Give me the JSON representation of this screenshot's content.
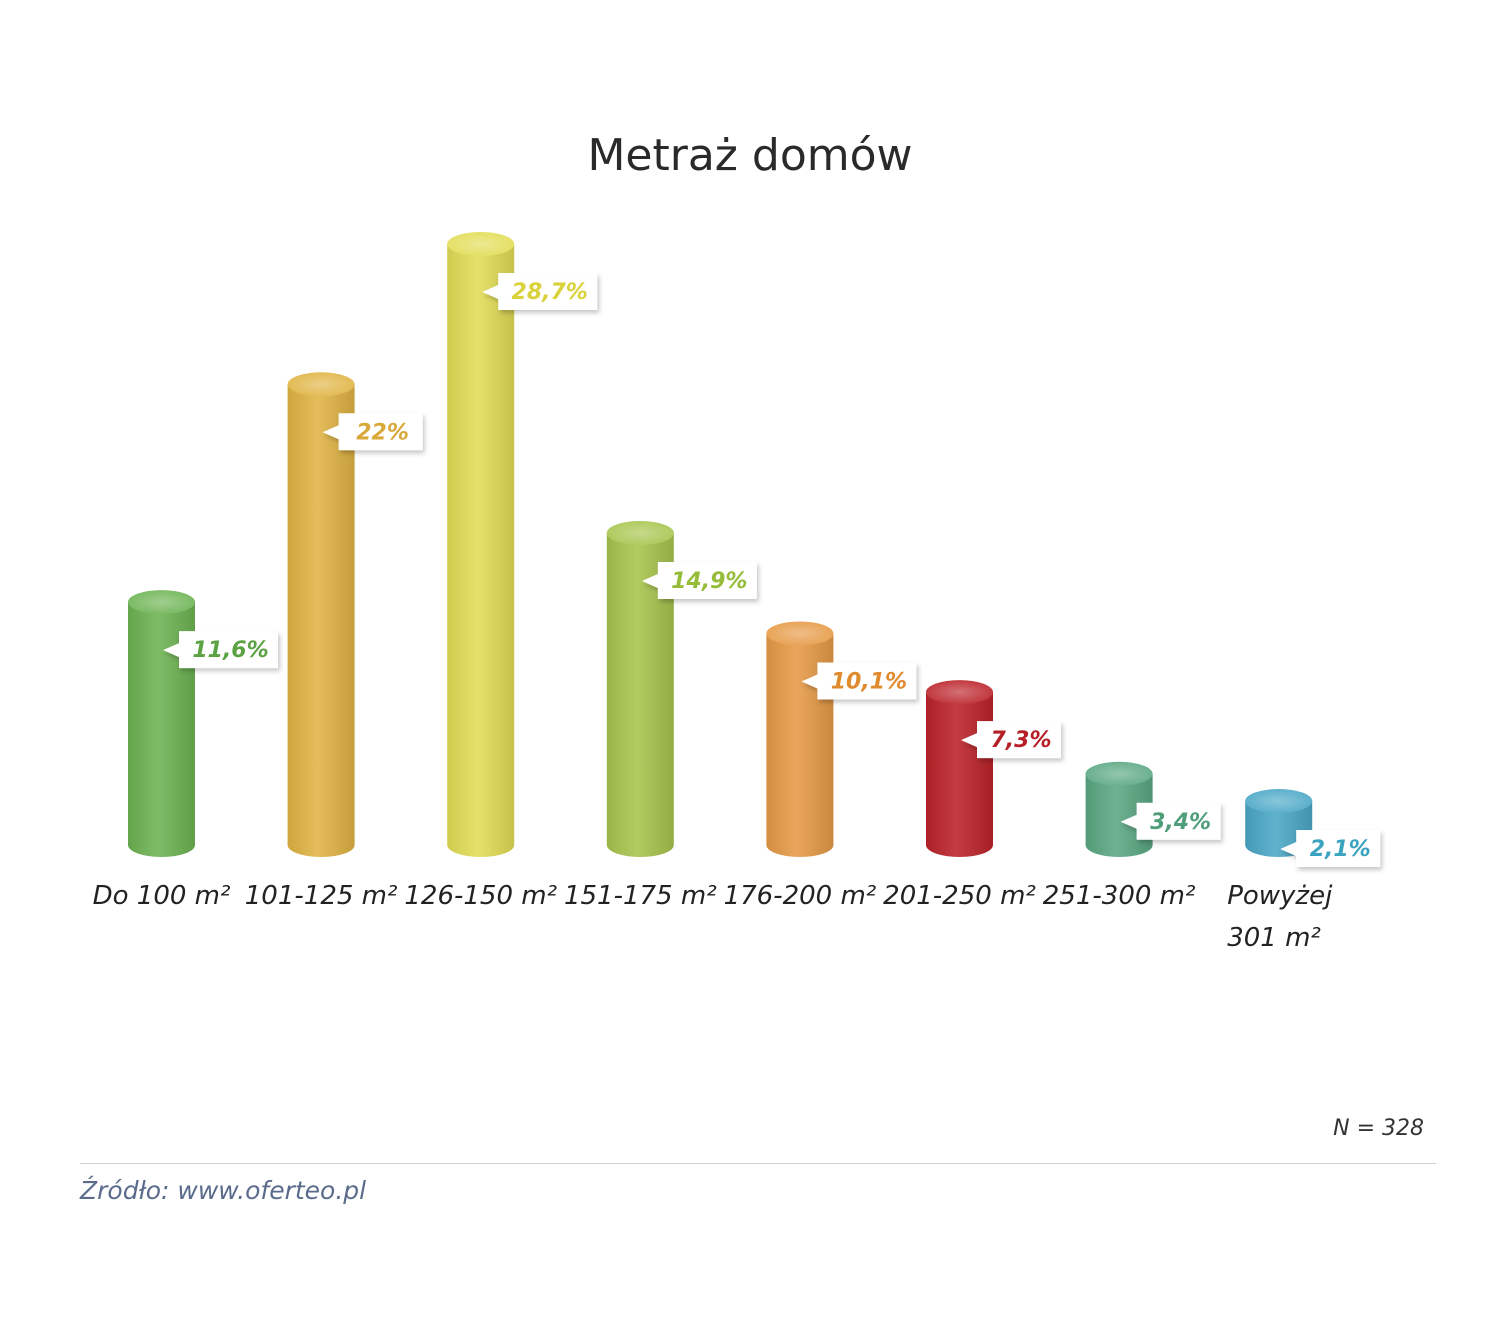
{
  "chart_data": {
    "type": "bar",
    "title": "Metraż domów",
    "categories": [
      [
        "Do 100 m²"
      ],
      [
        "101-125 m²"
      ],
      [
        "126-150 m²"
      ],
      [
        "151-175 m²"
      ],
      [
        "176-200 m²"
      ],
      [
        "201-250 m²"
      ],
      [
        "251-300 m²"
      ],
      [
        "Powyżej",
        "301 m²"
      ]
    ],
    "values": [
      11.6,
      22,
      28.7,
      14.9,
      10.1,
      7.3,
      3.4,
      2.1
    ],
    "value_labels": [
      "11,6%",
      "22%",
      "28,7%",
      "14,9%",
      "10,1%",
      "7,3%",
      "3,4%",
      "2,1%"
    ],
    "colors": [
      "#6db352",
      "#e0b443",
      "#e2dd56",
      "#a7c54d",
      "#e69a46",
      "#bb2329",
      "#5aa882",
      "#4aa7c6"
    ],
    "label_colors": [
      "#5aa242",
      "#d9a83a",
      "#d9d23a",
      "#96bd3a",
      "#e08a2e",
      "#b51f25",
      "#4f9e79",
      "#3aa3c0"
    ],
    "ylim": [
      0,
      28.7
    ],
    "grid": false,
    "legend": "none"
  },
  "note": "N = 328",
  "source": "Źródło: www.oferteo.pl"
}
